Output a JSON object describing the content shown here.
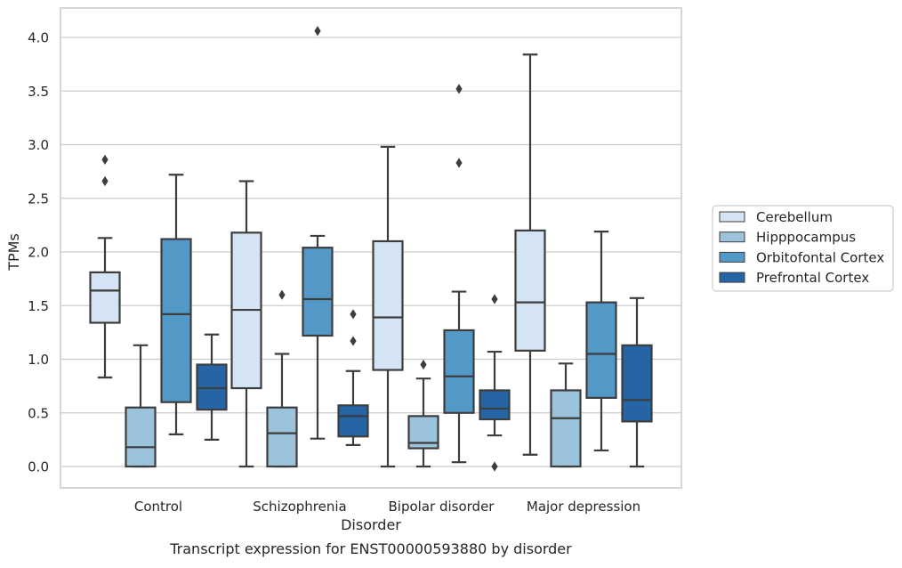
{
  "caption": "Transcript expression for ENST00000593880 by disorder",
  "chart_data": {
    "type": "boxplot",
    "title": "",
    "xlabel": "Disorder",
    "ylabel": "TPMs",
    "ylim": [
      -0.2,
      4.27
    ],
    "yticks": [
      "0.0",
      "0.5",
      "1.0",
      "1.5",
      "2.0",
      "2.5",
      "3.0",
      "3.5",
      "4.0"
    ],
    "grid": "horizontal",
    "legend_position": "right",
    "categories": [
      "Control",
      "Schizophrenia",
      "Bipolar disorder",
      "Major depression"
    ],
    "series": [
      {
        "name": "Cerebellum",
        "color": "#d4e4f4",
        "boxes": [
          {
            "whislo": 0.83,
            "q1": 1.34,
            "med": 1.64,
            "q3": 1.81,
            "whishi": 2.13,
            "fliers": [
              2.66,
              2.86
            ]
          },
          {
            "whislo": 0.0,
            "q1": 0.73,
            "med": 1.46,
            "q3": 2.18,
            "whishi": 2.66,
            "fliers": []
          },
          {
            "whislo": 0.0,
            "q1": 0.9,
            "med": 1.39,
            "q3": 2.1,
            "whishi": 2.98,
            "fliers": []
          },
          {
            "whislo": 0.11,
            "q1": 1.08,
            "med": 1.53,
            "q3": 2.2,
            "whishi": 3.84,
            "fliers": []
          }
        ]
      },
      {
        "name": "Hipppocampus",
        "color": "#9cc3dc",
        "boxes": [
          {
            "whislo": 0.0,
            "q1": 0.0,
            "med": 0.18,
            "q3": 0.55,
            "whishi": 1.13,
            "fliers": []
          },
          {
            "whislo": 0.0,
            "q1": 0.0,
            "med": 0.31,
            "q3": 0.55,
            "whishi": 1.05,
            "fliers": [
              1.6
            ]
          },
          {
            "whislo": 0.0,
            "q1": 0.17,
            "med": 0.22,
            "q3": 0.47,
            "whishi": 0.82,
            "fliers": [
              0.95
            ]
          },
          {
            "whislo": 0.0,
            "q1": 0.0,
            "med": 0.45,
            "q3": 0.71,
            "whishi": 0.96,
            "fliers": []
          }
        ]
      },
      {
        "name": "Orbitofontal Cortex",
        "color": "#5399c8",
        "boxes": [
          {
            "whislo": 0.3,
            "q1": 0.6,
            "med": 1.42,
            "q3": 2.12,
            "whishi": 2.72,
            "fliers": []
          },
          {
            "whislo": 0.26,
            "q1": 1.22,
            "med": 1.56,
            "q3": 2.04,
            "whishi": 2.15,
            "fliers": [
              4.06
            ]
          },
          {
            "whislo": 0.04,
            "q1": 0.5,
            "med": 0.84,
            "q3": 1.27,
            "whishi": 1.63,
            "fliers": [
              2.83,
              3.52
            ]
          },
          {
            "whislo": 0.15,
            "q1": 0.64,
            "med": 1.05,
            "q3": 1.53,
            "whishi": 2.19,
            "fliers": []
          }
        ]
      },
      {
        "name": "Prefrontal Cortex",
        "color": "#2565a6",
        "boxes": [
          {
            "whislo": 0.25,
            "q1": 0.53,
            "med": 0.73,
            "q3": 0.95,
            "whishi": 1.23,
            "fliers": []
          },
          {
            "whislo": 0.2,
            "q1": 0.28,
            "med": 0.47,
            "q3": 0.57,
            "whishi": 0.89,
            "fliers": [
              1.17,
              1.42
            ]
          },
          {
            "whislo": 0.29,
            "q1": 0.44,
            "med": 0.54,
            "q3": 0.71,
            "whishi": 1.07,
            "fliers": [
              0.0,
              1.56
            ]
          },
          {
            "whislo": 0.0,
            "q1": 0.42,
            "med": 0.62,
            "q3": 1.13,
            "whishi": 1.57,
            "fliers": []
          }
        ]
      }
    ]
  }
}
